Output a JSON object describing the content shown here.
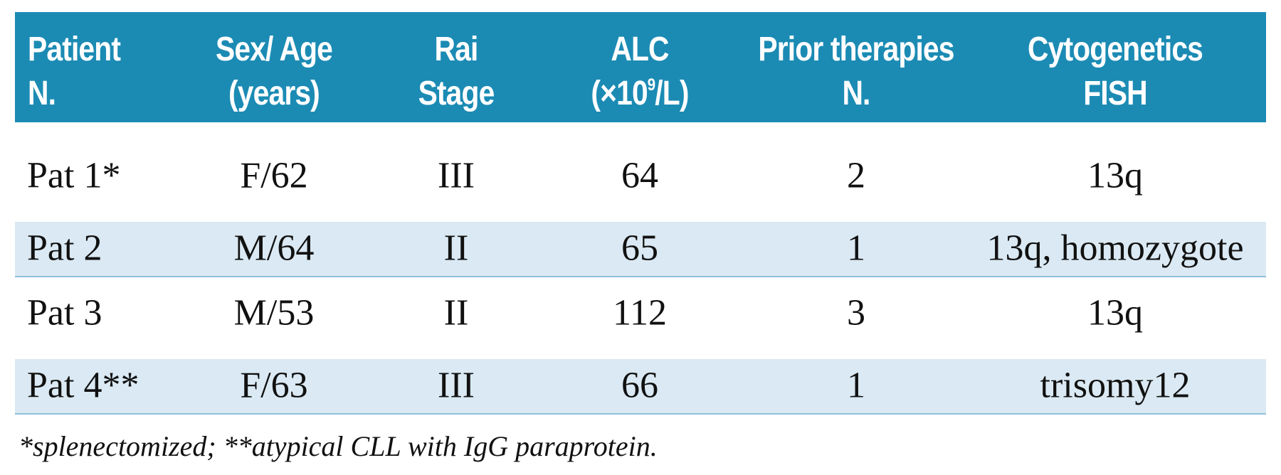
{
  "table": {
    "header": {
      "patient": [
        "Patient",
        "N."
      ],
      "sex_age": [
        "Sex/ Age",
        "(years)"
      ],
      "rai": [
        "Rai",
        "Stage"
      ],
      "alc": {
        "name": "ALC",
        "unit_before": "(×10",
        "unit_sup": "9",
        "unit_after": "/L)"
      },
      "prior": [
        "Prior therapies",
        "N."
      ],
      "cyto": [
        "Cytogenetics",
        "FISH"
      ]
    },
    "rows": [
      [
        "Pat 1*",
        "F/62",
        "III",
        64,
        2,
        "13q"
      ],
      [
        "Pat 2",
        "M/64",
        "II",
        65,
        1,
        "13q, homozygote"
      ],
      [
        "Pat 3",
        "M/53",
        "II",
        112,
        3,
        "13q"
      ],
      [
        "Pat 4**",
        "F/63",
        "III",
        66,
        1,
        "trisomy12"
      ]
    ],
    "footnote": "*splenectomized; **atypical CLL with IgG paraprotein."
  }
}
